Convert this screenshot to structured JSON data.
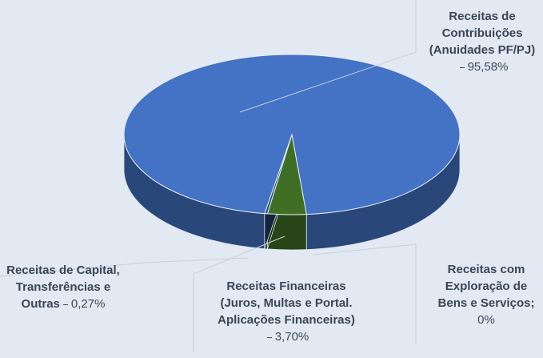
{
  "chart_data": {
    "type": "pie",
    "categories": [
      "Receitas de Contribuições (Anuidades PF/PJ)",
      "Receitas com Exploração de Bens e Serviços;",
      "Receitas Financeiras (Juros, Multas e Portal. Aplicações Financeiras)",
      "Receitas de Capital, Transferências e Outras"
    ],
    "values": [
      95.58,
      0,
      3.7,
      0.27
    ],
    "value_labels": [
      "95,58%",
      "0%",
      "3,70%",
      "0,27%"
    ],
    "colors": [
      "#4472c4",
      "#ffc000",
      "#3f6f25",
      "#2d4f86"
    ]
  }
}
